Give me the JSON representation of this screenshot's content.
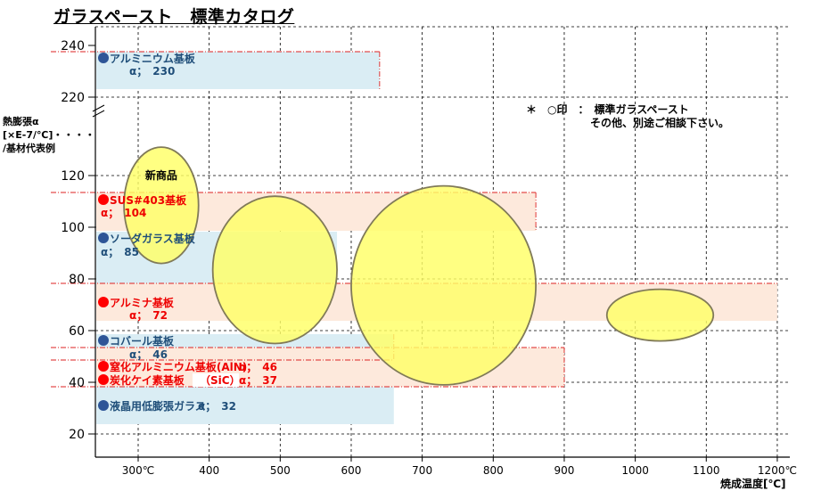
{
  "title": "ガラスペースト　標準カタログ",
  "y_axis_label": {
    "line1": "熱膨張α",
    "line2": "[×E-7/℃]",
    "line2_suffix": "・・・・",
    "line3": "/基材代表例"
  },
  "note": {
    "line1": "＊　○印　：　標準ガラスペースト",
    "line2": "その他、別途ご相談下さい。"
  },
  "x_unit_label": "焼成温度[℃]",
  "new_product_label": "新商品",
  "colors": {
    "blue_band": "#daedf4",
    "salmon_band": "#fde9dc",
    "blue_text": "#1f4e79",
    "red_text": "#ee0000",
    "red_marker": "#ff0000",
    "blue_marker": "#2e5597",
    "ellipse_fill": "#ffff66",
    "ellipse_stroke": "#807a58",
    "dash_line": "#dd2222"
  },
  "chart_data": {
    "type": "scatter",
    "x_ticks": [
      "300℃",
      "400",
      "500",
      "600",
      "700",
      "800",
      "900",
      "1000",
      "1100",
      "1200℃"
    ],
    "y_ticks_lower": [
      "20",
      "40",
      "60",
      "80",
      "100",
      "120"
    ],
    "y_ticks_upper": [
      "220",
      "240"
    ],
    "y_axis_break": true,
    "xlim": [
      250,
      1200
    ],
    "grid": true,
    "substrates": [
      {
        "name": "アルミニウム基板",
        "alpha_label": "α；　230",
        "alpha": 230,
        "color": "blue",
        "x_extent_to": 640
      },
      {
        "name": "SUS#403基板",
        "alpha_label": "α；　104",
        "alpha": 104,
        "color": "red",
        "x_extent_to": 860
      },
      {
        "name": "ソーダガラス基板",
        "alpha_label": "α；　85",
        "alpha": 85,
        "color": "blue",
        "x_extent_to": 580
      },
      {
        "name": "アルミナ基板",
        "alpha_label": "α；　72",
        "alpha": 72,
        "color": "red",
        "x_extent_to": 1200
      },
      {
        "name": "コバール基板",
        "alpha_label": "α；　46",
        "alpha": 46,
        "color": "blue",
        "x_extent_to": 660
      },
      {
        "name": "窒化アルミニウム基板(AlN)",
        "alpha_label": "α；　46",
        "alpha": 46,
        "color": "red",
        "x_extent_to": 900
      },
      {
        "name": "炭化ケイ素基板",
        "name_suffix": "（SiC）",
        "alpha_label": "α；　37",
        "alpha": 37,
        "color": "red",
        "x_extent_to": 900
      },
      {
        "name": "液晶用低膨張ガラス",
        "alpha_label": "α；　32",
        "alpha": 32,
        "color": "blue",
        "x_extent_to": 660
      }
    ],
    "glass_pastes": [
      {
        "label": "新商品",
        "temp_min": 280,
        "temp_max": 385,
        "alpha_min": 86,
        "alpha_max": 131
      },
      {
        "label": "",
        "temp_min": 405,
        "temp_max": 580,
        "alpha_min": 55,
        "alpha_max": 112
      },
      {
        "label": "",
        "temp_min": 600,
        "temp_max": 860,
        "alpha_min": 39,
        "alpha_max": 116
      },
      {
        "label": "",
        "temp_min": 960,
        "temp_max": 1110,
        "alpha_min": 56,
        "alpha_max": 76
      }
    ]
  }
}
